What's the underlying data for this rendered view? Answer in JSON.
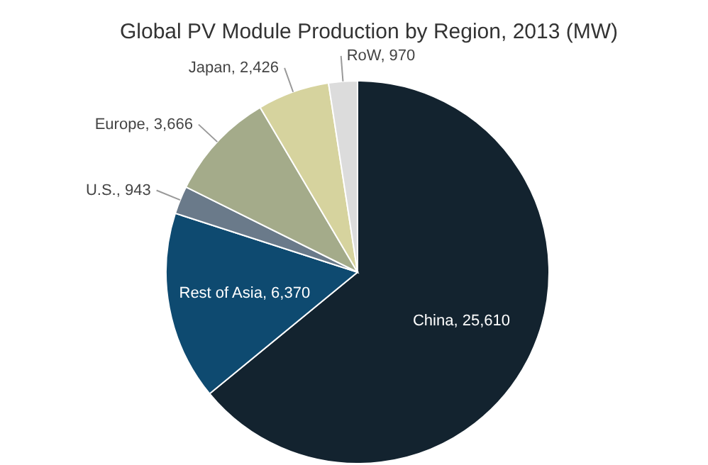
{
  "chart_data": {
    "type": "pie",
    "title": "Global PV Module Production by Region, 2013 (MW)",
    "categories": [
      "China",
      "Rest of Asia",
      "U.S.",
      "Europe",
      "Japan",
      "RoW"
    ],
    "values": [
      25610,
      6370,
      943,
      3666,
      2426,
      970
    ],
    "colors": [
      "#13232f",
      "#0e4a70",
      "#6a7a8a",
      "#a4ab8a",
      "#d6d39e",
      "#dcdcdc"
    ],
    "value_labels": [
      "25,610",
      "6,370",
      "943",
      "3,666",
      "2,426",
      "970"
    ]
  }
}
